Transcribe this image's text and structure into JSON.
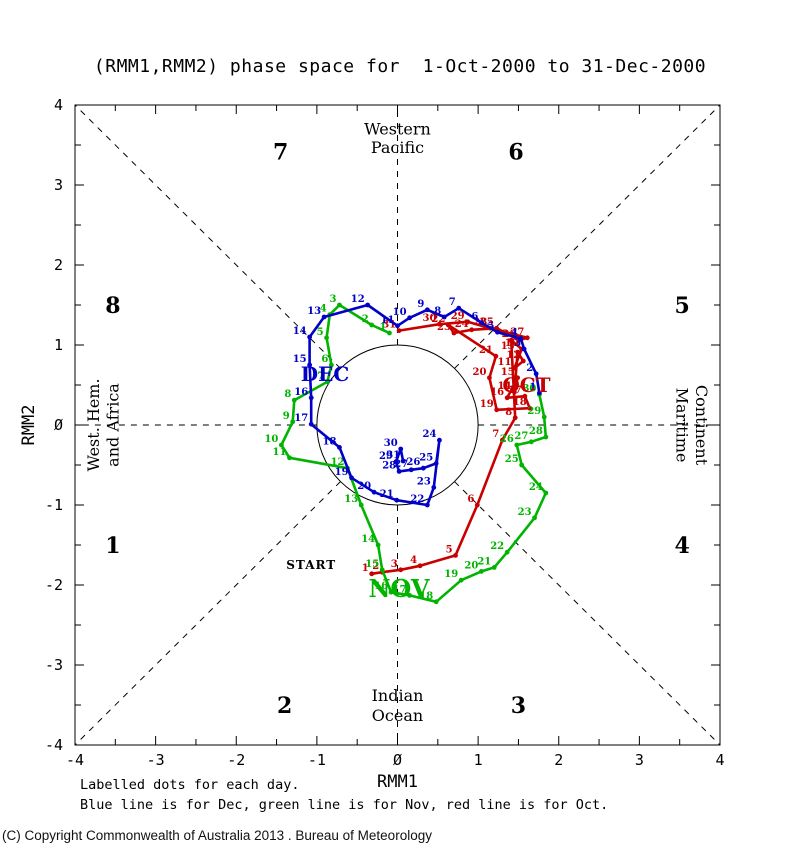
{
  "title": "(RMM1,RMM2) phase space for  1-Oct-2000 to 31-Dec-2000",
  "footnotes": {
    "line1": "Labelled dots for each day.",
    "line2": "Blue line is for Dec, green line is for Nov, red line is for Oct."
  },
  "copyright": "(C) Copyright Commonwealth of Australia 2013 . Bureau of Meteorology",
  "chart_data": {
    "type": "line",
    "title": "(RMM1,RMM2) phase space for  1-Oct-2000 to 31-Dec-2000",
    "xlabel": "RMM1",
    "ylabel": "RMM2",
    "xlim": [
      -4,
      4
    ],
    "ylim": [
      -4,
      4
    ],
    "tick_values": [
      -4,
      -3,
      -2,
      -1,
      0,
      1,
      2,
      3,
      4
    ],
    "tick_labels": [
      "-4",
      "-3",
      "-2",
      "-1",
      "Ø",
      "1",
      "2",
      "3",
      "4"
    ],
    "minor_tick_step": 0.5,
    "unit_circle_radius": 1,
    "grid": "dashed-octants",
    "legend_position": "footnote",
    "colors": {
      "oct": "#c80000",
      "nov": "#00b400",
      "dec": "#0000c8",
      "axis": "#000000"
    },
    "phase_numbers": [
      {
        "n": "1",
        "x": -3.53,
        "y": -1.5
      },
      {
        "n": "2",
        "x": -1.4,
        "y": -3.5
      },
      {
        "n": "3",
        "x": 1.5,
        "y": -3.5
      },
      {
        "n": "4",
        "x": 3.53,
        "y": -1.5
      },
      {
        "n": "5",
        "x": 3.53,
        "y": 1.5
      },
      {
        "n": "6",
        "x": 1.47,
        "y": 3.42
      },
      {
        "n": "7",
        "x": -1.45,
        "y": 3.42
      },
      {
        "n": "8",
        "x": -3.53,
        "y": 1.5
      }
    ],
    "region_labels": {
      "top": {
        "lines": [
          "Western",
          "Pacific"
        ],
        "x": 0,
        "y": [
          3.63,
          3.4
        ]
      },
      "bottom": {
        "lines": [
          "Indian",
          "Ocean"
        ],
        "x": 0,
        "y": [
          -3.45,
          -3.7
        ]
      },
      "left": {
        "lines": [
          "West. Hem.",
          "and Africa"
        ],
        "y": 0,
        "x": [
          -3.7,
          -3.46
        ],
        "rotation": -90
      },
      "right": {
        "lines": [
          "Maritime",
          "Continent"
        ],
        "y": 0,
        "x": [
          3.46,
          3.7
        ],
        "rotation": 90
      }
    },
    "month_labels": [
      {
        "text": "OCT",
        "x": 1.3,
        "y": 0.41,
        "color": "#c80000",
        "size": 20
      },
      {
        "text": "NOV",
        "x": -0.36,
        "y": -2.15,
        "color": "#00b400",
        "size": 24
      },
      {
        "text": "DEC",
        "x": -1.2,
        "y": 0.55,
        "color": "#0000c8",
        "size": 20
      }
    ],
    "start_marker": {
      "text": "START",
      "x": -0.76,
      "y": -1.8
    },
    "series": [
      {
        "name": "Oct",
        "color": "#c80000",
        "points": [
          [
            1,
            -0.32,
            -1.86
          ],
          [
            2,
            -0.19,
            -1.84
          ],
          [
            3,
            0.04,
            -1.81
          ],
          [
            4,
            0.28,
            -1.76
          ],
          [
            5,
            0.72,
            -1.63
          ],
          [
            6,
            0.99,
            -1.0
          ],
          [
            7,
            1.3,
            -0.19
          ],
          [
            8,
            1.46,
            0.09
          ],
          [
            9,
            1.41,
            1.06
          ],
          [
            10,
            1.54,
            0.95
          ],
          [
            11,
            1.45,
            0.71
          ],
          [
            12,
            1.56,
            0.8
          ],
          [
            13,
            1.49,
            0.91
          ],
          [
            14,
            1.45,
            0.41
          ],
          [
            15,
            1.49,
            0.59
          ],
          [
            16,
            1.36,
            0.34
          ],
          [
            17,
            1.58,
            0.36
          ],
          [
            18,
            1.64,
            0.21
          ],
          [
            19,
            1.23,
            0.19
          ],
          [
            20,
            1.14,
            0.59
          ],
          [
            21,
            1.22,
            0.86
          ],
          [
            22,
            0.63,
            1.25
          ],
          [
            23,
            0.7,
            1.15
          ],
          [
            24,
            0.92,
            1.19
          ],
          [
            25,
            1.23,
            1.21
          ],
          [
            26,
            1.51,
            1.06
          ],
          [
            27,
            1.61,
            1.09
          ],
          [
            28,
            1.15,
            1.21
          ],
          [
            29,
            0.87,
            1.29
          ],
          [
            30,
            0.52,
            1.26
          ],
          [
            31,
            0.02,
            1.18
          ]
        ]
      },
      {
        "name": "Nov",
        "color": "#00b400",
        "points": [
          [
            1,
            -0.1,
            1.15
          ],
          [
            2,
            -0.32,
            1.25
          ],
          [
            3,
            -0.72,
            1.5
          ],
          [
            4,
            -0.84,
            1.38
          ],
          [
            5,
            -0.88,
            1.09
          ],
          [
            6,
            -0.82,
            0.75
          ],
          [
            7,
            -0.87,
            0.54
          ],
          [
            8,
            -1.28,
            0.31
          ],
          [
            9,
            -1.3,
            0.04
          ],
          [
            10,
            -1.44,
            -0.25
          ],
          [
            11,
            -1.34,
            -0.41
          ],
          [
            12,
            -0.62,
            -0.54
          ],
          [
            13,
            -0.45,
            -1.0
          ],
          [
            14,
            -0.24,
            -1.5
          ],
          [
            15,
            -0.19,
            -1.81
          ],
          [
            16,
            -0.08,
            -2.09
          ],
          [
            17,
            0.15,
            -2.13
          ],
          [
            18,
            0.48,
            -2.21
          ],
          [
            19,
            0.79,
            -1.94
          ],
          [
            20,
            1.04,
            -1.83
          ],
          [
            21,
            1.2,
            -1.78
          ],
          [
            22,
            1.36,
            -1.59
          ],
          [
            23,
            1.7,
            -1.16
          ],
          [
            24,
            1.84,
            -0.85
          ],
          [
            25,
            1.54,
            -0.5
          ],
          [
            26,
            1.48,
            -0.25
          ],
          [
            27,
            1.66,
            -0.21
          ],
          [
            28,
            1.84,
            -0.15
          ],
          [
            29,
            1.82,
            0.1
          ],
          [
            30,
            1.76,
            0.38
          ]
        ]
      },
      {
        "name": "Dec",
        "color": "#0000c8",
        "points": [
          [
            1,
            1.76,
            0.4
          ],
          [
            2,
            1.72,
            0.64
          ],
          [
            3,
            1.57,
            0.95
          ],
          [
            4,
            1.53,
            1.08
          ],
          [
            5,
            1.24,
            1.16
          ],
          [
            6,
            1.04,
            1.28
          ],
          [
            7,
            0.76,
            1.46
          ],
          [
            8,
            0.58,
            1.35
          ],
          [
            9,
            0.37,
            1.44
          ],
          [
            10,
            0.15,
            1.34
          ],
          [
            11,
            0.0,
            1.24
          ],
          [
            12,
            -0.37,
            1.5
          ],
          [
            13,
            -0.91,
            1.35
          ],
          [
            14,
            -1.09,
            1.1
          ],
          [
            15,
            -1.09,
            0.75
          ],
          [
            16,
            -1.07,
            0.34
          ],
          [
            17,
            -1.07,
            0.01
          ],
          [
            18,
            -0.72,
            -0.28
          ],
          [
            19,
            -0.57,
            -0.66
          ],
          [
            20,
            -0.29,
            -0.84
          ],
          [
            21,
            -0.01,
            -0.94
          ],
          [
            22,
            0.37,
            -1.0
          ],
          [
            23,
            0.45,
            -0.78
          ],
          [
            24,
            0.52,
            -0.19
          ],
          [
            25,
            0.48,
            -0.48
          ],
          [
            26,
            0.32,
            -0.54
          ],
          [
            27,
            0.17,
            -0.56
          ],
          [
            28,
            0.02,
            -0.58
          ],
          [
            29,
            -0.02,
            -0.46
          ],
          [
            30,
            0.04,
            -0.3
          ],
          [
            31,
            0.07,
            -0.45
          ]
        ]
      }
    ]
  }
}
